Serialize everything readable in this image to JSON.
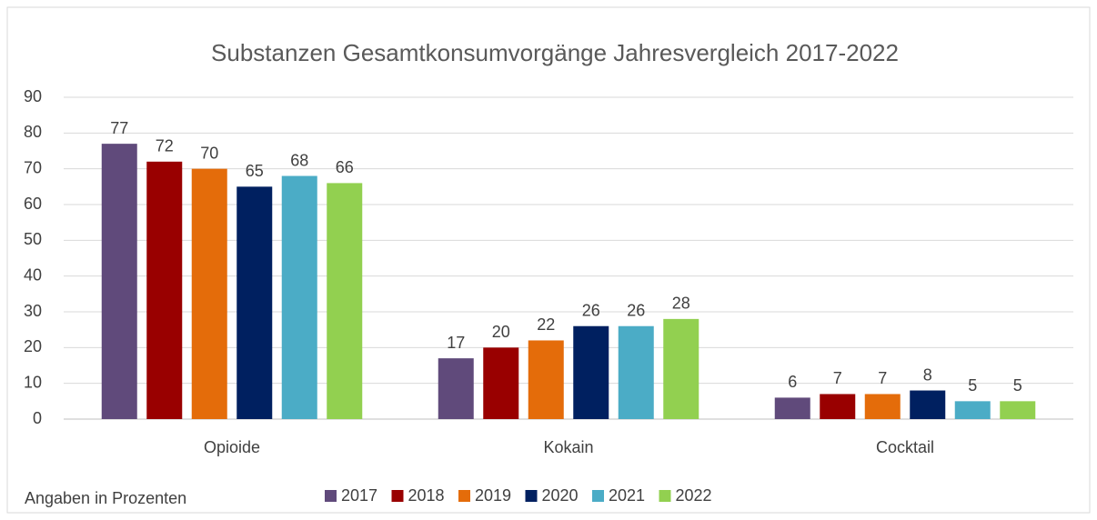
{
  "chart_data": {
    "type": "bar",
    "title": "Substanzen Gesamtkonsumvorgänge Jahresvergleich 2017-2022",
    "note": "Angaben in Prozenten",
    "categories": [
      "Opioide",
      "Kokain",
      "Cocktail"
    ],
    "series": [
      {
        "name": "2017",
        "color": "#604a7b",
        "values": [
          77,
          17,
          6
        ]
      },
      {
        "name": "2018",
        "color": "#990000",
        "values": [
          72,
          20,
          7
        ]
      },
      {
        "name": "2019",
        "color": "#e46c0a",
        "values": [
          70,
          22,
          7
        ]
      },
      {
        "name": "2020",
        "color": "#002060",
        "values": [
          65,
          26,
          8
        ]
      },
      {
        "name": "2021",
        "color": "#4bacc6",
        "values": [
          68,
          26,
          5
        ]
      },
      {
        "name": "2022",
        "color": "#92d050",
        "values": [
          66,
          28,
          5
        ]
      }
    ],
    "ylim": [
      0,
      90
    ],
    "yticks": [
      0,
      10,
      20,
      30,
      40,
      50,
      60,
      70,
      80,
      90
    ],
    "grid": true,
    "legend": "bottom"
  }
}
